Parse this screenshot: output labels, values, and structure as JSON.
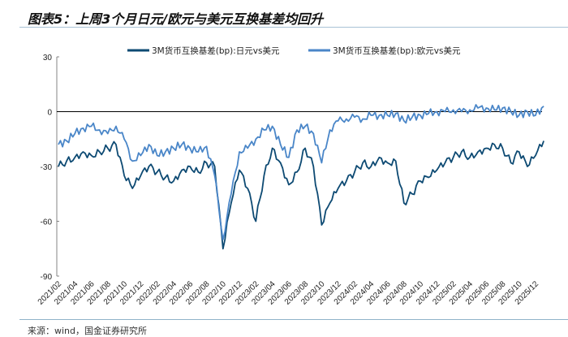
{
  "title": "图表5：上周3个月日元/欧元与美元互换基差均回升",
  "source": "来源：wind，国金证券研究所",
  "chart_data": {
    "type": "line",
    "title": "图表5：上周3个月日元/欧元与美元互换基差均回升",
    "xlabel": "",
    "ylabel": "",
    "ylim": [
      -90,
      30
    ],
    "yticks": [
      "30",
      "0",
      "-30",
      "-60",
      "-90"
    ],
    "ytick_values": [
      30,
      0,
      -30,
      -60,
      -90
    ],
    "xtick_labels": [
      "2021/02",
      "2021/04",
      "2021/06",
      "2021/08",
      "2021/10",
      "2021/12",
      "2022/02",
      "2022/04",
      "2022/06",
      "2022/08",
      "2022/10",
      "2022/12",
      "2023/02",
      "2023/04",
      "2023/06",
      "2023/08",
      "2023/10",
      "2023/12",
      "2024/02",
      "2024/04",
      "2024/06",
      "2024/08",
      "2024/10",
      "2024/12",
      "2025/02",
      "2025/04",
      "2025/06",
      "2025/08",
      "2025/10",
      "2025/12"
    ],
    "x_start": "2021/02",
    "x_step": "monthly",
    "legend_position": "top",
    "grid": false,
    "series": [
      {
        "name": "3M货币互换基差(bp):日元vs美元",
        "color": "#0d4a73",
        "values": [
          -30,
          -27,
          -25,
          -22,
          -24,
          -22,
          -20,
          -18,
          -35,
          -42,
          -35,
          -30,
          -33,
          -36,
          -38,
          -32,
          -30,
          -33,
          -28,
          -30,
          -75,
          -50,
          -32,
          -42,
          -60,
          -35,
          -20,
          -28,
          -40,
          -33,
          -20,
          -30,
          -62,
          -50,
          -42,
          -38,
          -33,
          -28,
          -30,
          -25,
          -28,
          -27,
          -50,
          -45,
          -38,
          -36,
          -32,
          -28,
          -25,
          -22,
          -25,
          -22,
          -20,
          -18,
          -20,
          -28,
          -22,
          -30,
          -24,
          -16
        ]
      },
      {
        "name": "3M货币互换基差(bp):欧元vs美元",
        "color": "#4a86c8",
        "values": [
          -18,
          -16,
          -12,
          -9,
          -8,
          -10,
          -12,
          -8,
          -15,
          -27,
          -24,
          -18,
          -24,
          -22,
          -20,
          -18,
          -20,
          -22,
          -19,
          -35,
          -70,
          -45,
          -22,
          -20,
          -15,
          -10,
          -8,
          -18,
          -25,
          -10,
          -8,
          -12,
          -28,
          -10,
          -5,
          -4,
          -3,
          -4,
          -2,
          -2,
          -2,
          -1,
          -5,
          -3,
          -2,
          -1,
          0,
          0,
          1,
          0,
          1,
          2,
          2,
          1,
          2,
          0,
          -2,
          0,
          -2,
          3
        ]
      }
    ]
  }
}
